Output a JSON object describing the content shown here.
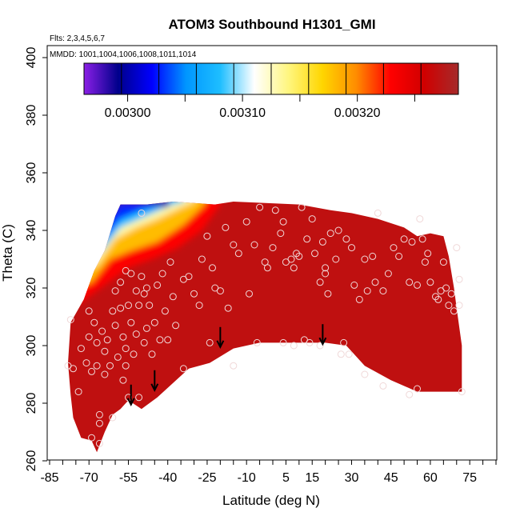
{
  "chart_data": {
    "type": "heatmap",
    "title": "ATOM3 Southbound H1301_GMI",
    "flights_label": "Flts: 2,3,4,5,6,7",
    "dates_label": "MMDD: 1001,1004,1006,1008,1011,1014",
    "xlabel": "Latitude (deg N)",
    "ylabel": "Theta (C)",
    "xlim": [
      -85,
      85
    ],
    "ylim": [
      260,
      400
    ],
    "x_ticks": [
      -85,
      -70,
      -55,
      -40,
      -25,
      -10,
      5,
      15,
      30,
      45,
      60,
      75
    ],
    "y_ticks": [
      260,
      280,
      300,
      320,
      340,
      360,
      380,
      400
    ],
    "colorbar": {
      "range": [
        0.002962,
        0.003288
      ],
      "tick_values": [
        0.003,
        0.0031,
        0.0032
      ],
      "tick_labels": [
        "0.00300",
        "0.00310",
        "0.00320"
      ],
      "colors": [
        "#8b1fe6",
        "#00008b",
        "#0000ff",
        "#0096ff",
        "#1ebeff",
        "#ffffff",
        "#fff680",
        "#ffd600",
        "#ff8c00",
        "#ff0000",
        "#d00000",
        "#a52a2a"
      ]
    },
    "field_background_value": 0.00327,
    "field_region": {
      "upper_edge": [
        [
          -77,
          308
        ],
        [
          -72,
          316
        ],
        [
          -68,
          326
        ],
        [
          -64,
          333
        ],
        [
          -60,
          345
        ],
        [
          -58,
          349
        ],
        [
          -48,
          349
        ],
        [
          -38,
          350
        ],
        [
          -22,
          349
        ],
        [
          -15,
          350
        ],
        [
          10,
          349
        ],
        [
          22,
          347
        ],
        [
          30,
          346
        ],
        [
          40,
          344
        ],
        [
          50,
          341
        ],
        [
          55,
          338
        ],
        [
          60,
          339
        ],
        [
          65,
          338
        ],
        [
          67,
          331
        ],
        [
          69,
          320
        ],
        [
          70,
          313
        ],
        [
          72,
          300
        ],
        [
          72,
          284
        ]
      ],
      "lower_edge": [
        [
          70,
          284
        ],
        [
          55,
          284
        ],
        [
          45,
          288
        ],
        [
          35,
          293
        ],
        [
          28,
          300
        ],
        [
          20,
          301
        ],
        [
          10,
          301
        ],
        [
          -5,
          301
        ],
        [
          -15,
          299
        ],
        [
          -24,
          294
        ],
        [
          -32,
          292
        ],
        [
          -38,
          287
        ],
        [
          -44,
          282
        ],
        [
          -50,
          278
        ],
        [
          -55,
          281
        ],
        [
          -58,
          278
        ],
        [
          -61,
          276
        ],
        [
          -64,
          270
        ],
        [
          -67,
          263
        ],
        [
          -69,
          267
        ],
        [
          -73,
          268
        ],
        [
          -76,
          275
        ],
        [
          -77,
          283
        ],
        [
          -78,
          294
        ]
      ]
    },
    "gradient_contours": [
      {
        "value": 0.00298,
        "points": [
          [
            -62,
            344
          ],
          [
            -58,
            349
          ],
          [
            -48,
            349
          ],
          [
            -40,
            348
          ]
        ]
      },
      {
        "value": 0.00303,
        "points": [
          [
            -64,
            337
          ],
          [
            -58,
            344
          ],
          [
            -50,
            347
          ],
          [
            -40,
            349
          ]
        ]
      },
      {
        "value": 0.00308,
        "points": [
          [
            -65,
            333
          ],
          [
            -58,
            341
          ],
          [
            -48,
            345
          ],
          [
            -38,
            349
          ],
          [
            -34,
            350
          ]
        ]
      },
      {
        "value": 0.00313,
        "points": [
          [
            -67,
            328
          ],
          [
            -60,
            337
          ],
          [
            -52,
            341
          ],
          [
            -44,
            344
          ],
          [
            -35,
            348
          ],
          [
            -30,
            350
          ]
        ]
      },
      {
        "value": 0.00318,
        "points": [
          [
            -69,
            322
          ],
          [
            -62,
            330
          ],
          [
            -54,
            333
          ],
          [
            -44,
            336
          ],
          [
            -34,
            342
          ],
          [
            -26,
            349
          ]
        ]
      },
      {
        "value": 0.00323,
        "points": [
          [
            -73,
            315
          ],
          [
            -64,
            321
          ],
          [
            -55,
            327
          ],
          [
            -46,
            330
          ],
          [
            -36,
            334
          ],
          [
            -27,
            340
          ],
          [
            -20,
            349
          ]
        ]
      }
    ],
    "points": [
      [
        -78,
        293
      ],
      [
        -77,
        309
      ],
      [
        -76,
        292
      ],
      [
        -74,
        284
      ],
      [
        -73,
        299
      ],
      [
        -71,
        294
      ],
      [
        -70,
        312
      ],
      [
        -70,
        303
      ],
      [
        -69,
        291
      ],
      [
        -68,
        308
      ],
      [
        -67,
        301
      ],
      [
        -67,
        293
      ],
      [
        -66,
        266
      ],
      [
        -66,
        276
      ],
      [
        -65,
        305
      ],
      [
        -64,
        298
      ],
      [
        -64,
        290
      ],
      [
        -63,
        302
      ],
      [
        -62,
        293
      ],
      [
        -61,
        312
      ],
      [
        -61,
        275
      ],
      [
        -60,
        319
      ],
      [
        -60,
        307
      ],
      [
        -59,
        296
      ],
      [
        -58,
        322
      ],
      [
        -58,
        313
      ],
      [
        -57,
        303
      ],
      [
        -57,
        288
      ],
      [
        -56,
        326
      ],
      [
        -56,
        299
      ],
      [
        -56,
        293
      ],
      [
        -55,
        314
      ],
      [
        -55,
        282
      ],
      [
        -54,
        325
      ],
      [
        -54,
        308
      ],
      [
        -53,
        297
      ],
      [
        -52,
        319
      ],
      [
        -52,
        304
      ],
      [
        -51,
        314
      ],
      [
        -51,
        282
      ],
      [
        -50,
        346
      ],
      [
        -50,
        324
      ],
      [
        -49,
        318
      ],
      [
        -49,
        301
      ],
      [
        -48,
        320
      ],
      [
        -48,
        306
      ],
      [
        -47,
        314
      ],
      [
        -46,
        297
      ],
      [
        -45,
        308
      ],
      [
        -44,
        321
      ],
      [
        -43,
        302
      ],
      [
        -42,
        325
      ],
      [
        -41,
        312
      ],
      [
        -40,
        302
      ],
      [
        -39,
        329
      ],
      [
        -38,
        317
      ],
      [
        -37,
        307
      ],
      [
        -34,
        323
      ],
      [
        -32,
        324
      ],
      [
        -30,
        318
      ],
      [
        -28,
        314
      ],
      [
        -27,
        330
      ],
      [
        -25,
        338
      ],
      [
        -24,
        301
      ],
      [
        -23,
        327
      ],
      [
        -22,
        320
      ],
      [
        -20,
        319
      ],
      [
        -18,
        341
      ],
      [
        -17,
        313
      ],
      [
        -15,
        335
      ],
      [
        -15,
        293
      ],
      [
        -13,
        332
      ],
      [
        -10,
        343
      ],
      [
        -9,
        318
      ],
      [
        -7,
        335
      ],
      [
        -5,
        348
      ],
      [
        -3,
        329
      ],
      [
        -2,
        327
      ],
      [
        0,
        334
      ],
      [
        1,
        347
      ],
      [
        3,
        339
      ],
      [
        4,
        343
      ],
      [
        5,
        329
      ],
      [
        7,
        330
      ],
      [
        8,
        327
      ],
      [
        9,
        332
      ],
      [
        10,
        331
      ],
      [
        11,
        348
      ],
      [
        13,
        337
      ],
      [
        15,
        344
      ],
      [
        16,
        332
      ],
      [
        18,
        322
      ],
      [
        19,
        336
      ],
      [
        20,
        327
      ],
      [
        20,
        325
      ],
      [
        21,
        318
      ],
      [
        22,
        339
      ],
      [
        24,
        330
      ],
      [
        25,
        340
      ],
      [
        27,
        301
      ],
      [
        28,
        337
      ],
      [
        30,
        334
      ],
      [
        31,
        321
      ],
      [
        33,
        316
      ],
      [
        35,
        330
      ],
      [
        36,
        319
      ],
      [
        38,
        331
      ],
      [
        39,
        322
      ],
      [
        40,
        346
      ],
      [
        42,
        319
      ],
      [
        44,
        325
      ],
      [
        46,
        334
      ],
      [
        48,
        331
      ],
      [
        50,
        337
      ],
      [
        52,
        322
      ],
      [
        53,
        336
      ],
      [
        55,
        321
      ],
      [
        56,
        344
      ],
      [
        57,
        337
      ],
      [
        58,
        329
      ],
      [
        59,
        332
      ],
      [
        60,
        322
      ],
      [
        62,
        317
      ],
      [
        63,
        316
      ],
      [
        64,
        319
      ],
      [
        65,
        329
      ],
      [
        66,
        320
      ],
      [
        67,
        314
      ],
      [
        68,
        318
      ],
      [
        69,
        312
      ],
      [
        70,
        334
      ],
      [
        71,
        323
      ],
      [
        71,
        314
      ],
      [
        72,
        284
      ],
      [
        -69,
        268
      ],
      [
        -66,
        273
      ],
      [
        -34,
        292
      ],
      [
        -6,
        301
      ],
      [
        4,
        301
      ],
      [
        8,
        300
      ],
      [
        12,
        302
      ],
      [
        14,
        301
      ],
      [
        18,
        300
      ],
      [
        26,
        297
      ],
      [
        29,
        297
      ],
      [
        35,
        290
      ],
      [
        42,
        286
      ],
      [
        52,
        283
      ],
      [
        55,
        285
      ]
    ],
    "arrows": [
      [
        -54,
        282
      ],
      [
        -45,
        287
      ],
      [
        -20,
        302
      ],
      [
        19,
        303
      ]
    ]
  }
}
